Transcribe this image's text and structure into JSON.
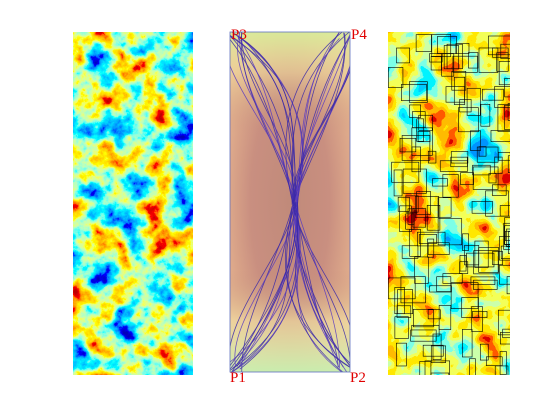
{
  "corner_labels": {
    "top_left": "P3",
    "top_right": "P4",
    "bottom_left": "P1",
    "bottom_right": "P2"
  }
}
